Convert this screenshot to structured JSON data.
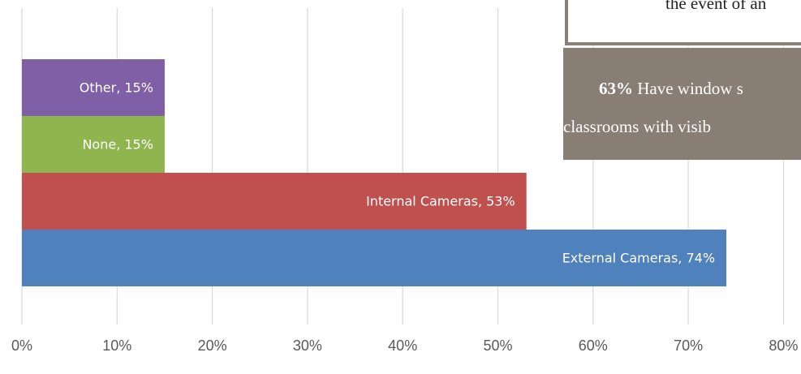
{
  "chart_data": {
    "type": "bar",
    "orientation": "horizontal",
    "categories": [
      "Other",
      "None",
      "Internal Cameras",
      "External Cameras"
    ],
    "values": [
      15,
      15,
      53,
      74
    ],
    "data_labels": [
      "Other, 15%",
      "None, 15%",
      "Internal Cameras, 53%",
      "External Cameras, 74%"
    ],
    "colors": [
      "#7f5fa6",
      "#8fb64e",
      "#c0504d",
      "#4f81bd"
    ],
    "x_ticks": [
      "0%",
      "10%",
      "20%",
      "30%",
      "40%",
      "50%",
      "60%",
      "70%",
      "80%"
    ],
    "xlim": [
      0,
      80
    ],
    "grid": true
  },
  "callouts": {
    "top_text": "the event of an",
    "stat_value": "63%",
    "stat_text_line1": "Have window s",
    "stat_text_line2": "classrooms with visib"
  }
}
